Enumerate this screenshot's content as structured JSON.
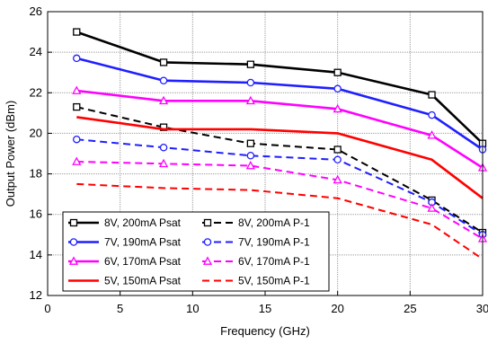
{
  "chart_data": {
    "type": "line",
    "title": "",
    "xlabel": "Frequency (GHz)",
    "ylabel": "Output Power (dBm)",
    "xlim": [
      0,
      30
    ],
    "ylim": [
      12,
      26
    ],
    "x_ticks": [
      0,
      5,
      10,
      15,
      20,
      25,
      30
    ],
    "y_ticks": [
      12,
      14,
      16,
      18,
      20,
      22,
      24,
      26
    ],
    "grid": true,
    "legend_position": "bottom-left",
    "series": [
      {
        "name": "8V, 200mA Psat",
        "color": "#000000",
        "dash": "solid",
        "marker": "square",
        "x": [
          2,
          8,
          14,
          20,
          26.5,
          30
        ],
        "y": [
          25.0,
          23.5,
          23.4,
          23.0,
          21.9,
          19.5
        ]
      },
      {
        "name": "8V, 200mA P-1",
        "color": "#000000",
        "dash": "dashed",
        "marker": "square",
        "x": [
          2,
          8,
          14,
          20,
          26.5,
          30
        ],
        "y": [
          21.3,
          20.3,
          19.5,
          19.2,
          16.7,
          15.1
        ]
      },
      {
        "name": "7V, 190mA Psat",
        "color": "#1f1fff",
        "dash": "solid",
        "marker": "circle",
        "x": [
          2,
          8,
          14,
          20,
          26.5,
          30
        ],
        "y": [
          23.7,
          22.6,
          22.5,
          22.2,
          20.9,
          19.2
        ]
      },
      {
        "name": "7V, 190mA P-1",
        "color": "#1f1fff",
        "dash": "dashed",
        "marker": "circle",
        "x": [
          2,
          8,
          14,
          20,
          26.5,
          30
        ],
        "y": [
          19.7,
          19.3,
          18.9,
          18.7,
          16.6,
          15.0
        ]
      },
      {
        "name": "6V, 170mA Psat",
        "color": "#ff00ff",
        "dash": "solid",
        "marker": "triangle",
        "x": [
          2,
          8,
          14,
          20,
          26.5,
          30
        ],
        "y": [
          22.1,
          21.6,
          21.6,
          21.2,
          19.9,
          18.3
        ]
      },
      {
        "name": "6V, 170mA P-1",
        "color": "#ff00ff",
        "dash": "dashed",
        "marker": "triangle",
        "x": [
          2,
          8,
          14,
          20,
          26.5,
          30
        ],
        "y": [
          18.6,
          18.5,
          18.4,
          17.7,
          16.3,
          14.8
        ]
      },
      {
        "name": "5V, 150mA Psat",
        "color": "#ff0000",
        "dash": "solid",
        "marker": "none",
        "x": [
          2,
          8,
          14,
          20,
          26.5,
          30
        ],
        "y": [
          20.8,
          20.2,
          20.2,
          20.0,
          18.7,
          16.8
        ]
      },
      {
        "name": "5V, 150mA P-1",
        "color": "#ff0000",
        "dash": "dashed",
        "marker": "none",
        "x": [
          2,
          8,
          14,
          20,
          26.5,
          30
        ],
        "y": [
          17.5,
          17.3,
          17.2,
          16.8,
          15.5,
          13.8
        ]
      }
    ]
  }
}
